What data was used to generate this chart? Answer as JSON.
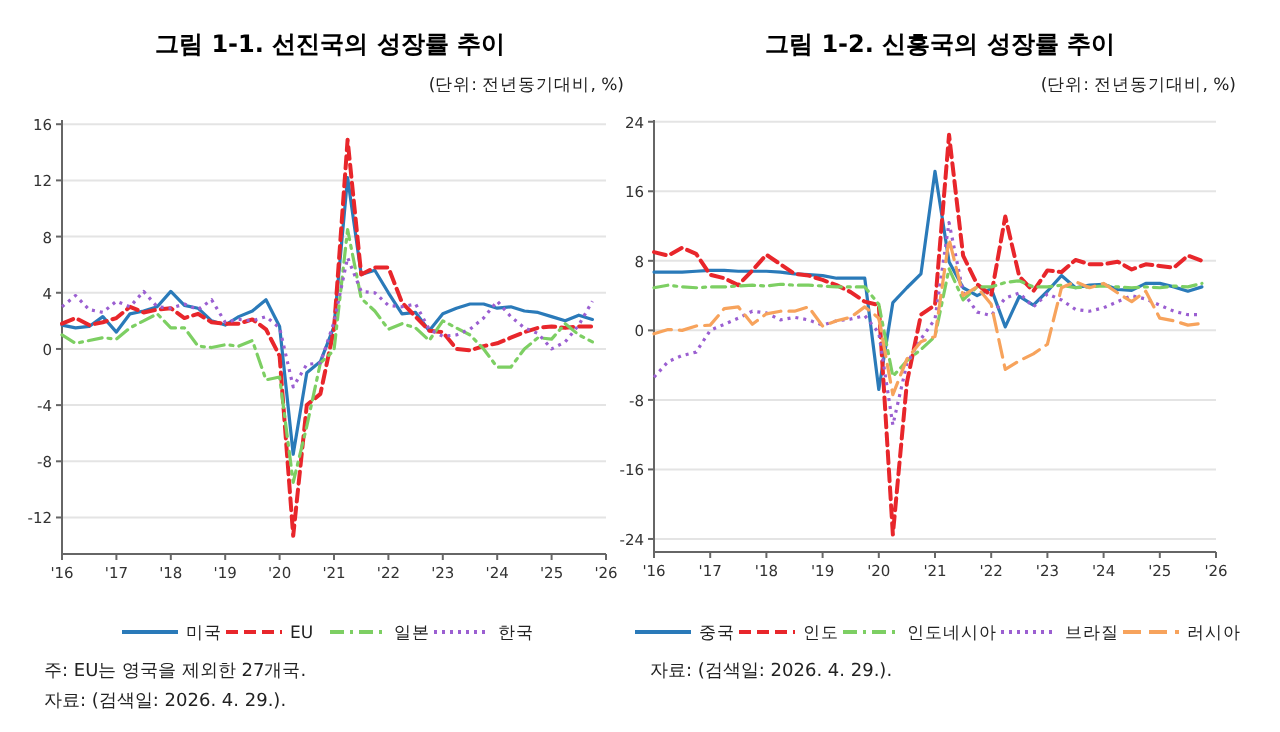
{
  "chart_data": [
    {
      "type": "line",
      "title": "그림 1-1. 선진국의 성장률 추이",
      "subtitle": "(단위: 전년동기대비, %)",
      "xlim": [
        2016,
        2026
      ],
      "xticks": [
        {
          "value": 2016,
          "label": "'16"
        },
        {
          "value": 2017,
          "label": "'17"
        },
        {
          "value": 2018,
          "label": "'18"
        },
        {
          "value": 2019,
          "label": "'19"
        },
        {
          "value": 2020,
          "label": "'20"
        },
        {
          "value": 2021,
          "label": "'21"
        },
        {
          "value": 2022,
          "label": "'22"
        },
        {
          "value": 2023,
          "label": "'23"
        },
        {
          "value": 2024,
          "label": "'24"
        },
        {
          "value": 2025,
          "label": "'25"
        },
        {
          "value": 2026,
          "label": "'26"
        }
      ],
      "ylim": [
        -14.6,
        16.3
      ],
      "yticks": [
        16,
        12,
        8,
        4,
        0,
        -4,
        -8,
        -12
      ],
      "grid": "y",
      "legend": "bottom",
      "annotations": [
        "주: EU는 영국을 제외한 27개국.",
        "자료: (검색일: 2026. 4. 29.)."
      ],
      "x": [
        2016,
        2016.25,
        2016.5,
        2016.75,
        2017,
        2017.25,
        2017.5,
        2017.75,
        2018,
        2018.25,
        2018.5,
        2018.75,
        2019,
        2019.25,
        2019.5,
        2019.75,
        2020,
        2020.25,
        2020.5,
        2020.75,
        2021,
        2021.25,
        2021.5,
        2021.75,
        2022,
        2022.25,
        2022.5,
        2022.75,
        2023,
        2023.25,
        2023.5,
        2023.75,
        2024,
        2024.25,
        2024.5,
        2024.75,
        2025,
        2025.25,
        2025.5,
        2025.75
      ],
      "series": [
        {
          "name": "미국",
          "color": "#2a7ab9",
          "line_style": "solid",
          "values": [
            1.7,
            1.5,
            1.6,
            2.3,
            1.2,
            2.5,
            2.7,
            3.0,
            4.1,
            3.1,
            2.9,
            2.0,
            1.7,
            2.3,
            2.7,
            3.5,
            1.6,
            -7.5,
            -1.7,
            -0.9,
            1.6,
            12.2,
            5.3,
            5.6,
            4.0,
            2.5,
            2.6,
            1.3,
            2.5,
            2.9,
            3.2,
            3.2,
            2.9,
            3.0,
            2.7,
            2.6,
            2.3,
            2.0,
            2.4,
            2.1
          ]
        },
        {
          "name": "EU",
          "color": "#e8262b",
          "line_style": "dashed",
          "values": [
            1.8,
            2.2,
            1.7,
            1.9,
            2.2,
            3.0,
            2.6,
            2.8,
            2.9,
            2.2,
            2.5,
            1.9,
            1.8,
            1.8,
            2.1,
            1.4,
            -0.5,
            -13.3,
            -4.0,
            -3.2,
            1.4,
            14.9,
            5.3,
            5.8,
            5.8,
            3.3,
            2.3,
            1.3,
            1.2,
            0.0,
            -0.1,
            0.2,
            0.4,
            0.8,
            1.2,
            1.5,
            1.6,
            1.5,
            1.6,
            1.6
          ]
        },
        {
          "name": "일본",
          "color": "#7dcf63",
          "line_style": "dashdot",
          "values": [
            1.0,
            0.4,
            0.6,
            0.8,
            0.7,
            1.5,
            2.0,
            2.5,
            1.5,
            1.5,
            0.2,
            0.1,
            0.3,
            0.2,
            0.6,
            -2.2,
            -2.0,
            -9.5,
            -5.5,
            -1.0,
            -0.1,
            8.5,
            3.6,
            2.7,
            1.4,
            1.8,
            1.5,
            0.6,
            2.0,
            1.5,
            1.0,
            0.0,
            -1.3,
            -1.3,
            0.0,
            0.8,
            0.7,
            1.8,
            1.0,
            0.5
          ]
        },
        {
          "name": "한국",
          "color": "#9b5fd1",
          "line_style": "dotted",
          "values": [
            3.0,
            3.8,
            2.8,
            2.6,
            3.4,
            3.0,
            4.1,
            3.0,
            2.9,
            3.2,
            2.8,
            3.5,
            1.9,
            2.1,
            2.0,
            2.3,
            1.5,
            -2.7,
            -1.1,
            -1.0,
            1.9,
            6.5,
            4.1,
            4.0,
            3.1,
            3.0,
            3.2,
            1.4,
            0.9,
            1.0,
            1.4,
            2.2,
            3.4,
            2.3,
            1.5,
            1.1,
            0.0,
            0.5,
            1.7,
            3.4
          ]
        }
      ]
    },
    {
      "type": "line",
      "title": "그림 1-2. 신흥국의 성장률 추이",
      "subtitle": "(단위: 전년동기대비, %)",
      "xlim": [
        2016,
        2026
      ],
      "xticks": [
        {
          "value": 2016,
          "label": "'16"
        },
        {
          "value": 2017,
          "label": "'17"
        },
        {
          "value": 2018,
          "label": "'18"
        },
        {
          "value": 2019,
          "label": "'19"
        },
        {
          "value": 2020,
          "label": "'20"
        },
        {
          "value": 2021,
          "label": "'21"
        },
        {
          "value": 2022,
          "label": "'22"
        },
        {
          "value": 2023,
          "label": "'23"
        },
        {
          "value": 2024,
          "label": "'24"
        },
        {
          "value": 2025,
          "label": "'25"
        },
        {
          "value": 2026,
          "label": "'26"
        }
      ],
      "ylim": [
        -25.5,
        24.2
      ],
      "yticks": [
        24,
        16,
        8,
        0,
        -8,
        -16,
        -24
      ],
      "grid": "y",
      "legend": "bottom",
      "annotations": [
        "자료: (검색일: 2026. 4. 29.)."
      ],
      "x": [
        2016,
        2016.25,
        2016.5,
        2016.75,
        2017,
        2017.25,
        2017.5,
        2017.75,
        2018,
        2018.25,
        2018.5,
        2018.75,
        2019,
        2019.25,
        2019.5,
        2019.75,
        2020,
        2020.25,
        2020.5,
        2020.75,
        2021,
        2021.25,
        2021.5,
        2021.75,
        2022,
        2022.25,
        2022.5,
        2022.75,
        2023,
        2023.25,
        2023.5,
        2023.75,
        2024,
        2024.25,
        2024.5,
        2024.75,
        2025,
        2025.25,
        2025.5,
        2025.75
      ],
      "series": [
        {
          "name": "중국",
          "color": "#2a7ab9",
          "line_style": "solid",
          "values": [
            6.7,
            6.7,
            6.7,
            6.8,
            6.9,
            6.9,
            6.8,
            6.8,
            6.8,
            6.7,
            6.5,
            6.4,
            6.3,
            6.0,
            6.0,
            6.0,
            -6.8,
            3.2,
            4.9,
            6.5,
            18.3,
            7.9,
            4.9,
            4.0,
            4.8,
            0.4,
            3.9,
            2.9,
            4.5,
            6.3,
            4.9,
            5.2,
            5.3,
            4.7,
            4.6,
            5.4,
            5.4,
            5.0,
            4.5,
            5.0
          ]
        },
        {
          "name": "인도",
          "color": "#e8262b",
          "line_style": "dashed",
          "values": [
            9.0,
            8.6,
            9.5,
            8.8,
            6.4,
            6.0,
            5.2,
            6.9,
            8.7,
            7.6,
            6.5,
            6.3,
            5.8,
            5.2,
            4.4,
            3.3,
            2.9,
            -23.5,
            -6.0,
            1.8,
            2.9,
            22.5,
            8.6,
            5.3,
            4.0,
            13.1,
            6.2,
            4.5,
            6.9,
            6.7,
            8.1,
            7.6,
            7.6,
            7.9,
            7.0,
            7.6,
            7.4,
            7.2,
            8.6,
            8.0
          ]
        },
        {
          "name": "인도네시아",
          "color": "#7dcf63",
          "line_style": "dashdot",
          "values": [
            4.9,
            5.2,
            5.0,
            4.9,
            5.0,
            5.0,
            5.1,
            5.2,
            5.1,
            5.3,
            5.2,
            5.2,
            5.1,
            5.0,
            5.0,
            5.0,
            3.0,
            -5.3,
            -3.5,
            -2.2,
            -0.7,
            7.1,
            3.5,
            5.0,
            5.0,
            5.5,
            5.7,
            5.0,
            5.0,
            5.2,
            4.9,
            5.0,
            5.1,
            5.0,
            4.9,
            5.0,
            4.9,
            5.1,
            5.0,
            5.4
          ]
        },
        {
          "name": "브라질",
          "color": "#9b5fd1",
          "line_style": "dotted",
          "values": [
            -5.4,
            -3.6,
            -2.9,
            -2.5,
            0.0,
            0.7,
            1.4,
            2.2,
            2.0,
            1.2,
            1.5,
            1.2,
            0.6,
            1.1,
            1.3,
            1.7,
            -0.3,
            -10.9,
            -3.8,
            -1.0,
            1.3,
            12.4,
            4.4,
            2.1,
            1.7,
            3.7,
            4.3,
            2.7,
            4.2,
            3.5,
            2.4,
            2.2,
            2.6,
            3.3,
            4.0,
            3.6,
            2.9,
            2.2,
            1.8,
            1.8
          ]
        },
        {
          "name": "러시아",
          "color": "#f7a35c",
          "line_style": "longdash",
          "values": [
            -0.4,
            0.1,
            0.0,
            0.5,
            0.6,
            2.5,
            2.7,
            0.7,
            1.9,
            2.2,
            2.2,
            2.7,
            0.5,
            1.1,
            1.5,
            2.7,
            1.4,
            -7.4,
            -3.3,
            -1.3,
            -0.7,
            10.5,
            4.0,
            5.0,
            3.0,
            -4.5,
            -3.5,
            -2.7,
            -1.6,
            4.9,
            5.6,
            4.9,
            5.4,
            4.3,
            3.3,
            4.5,
            1.4,
            1.1,
            0.6,
            0.8
          ]
        }
      ]
    }
  ]
}
